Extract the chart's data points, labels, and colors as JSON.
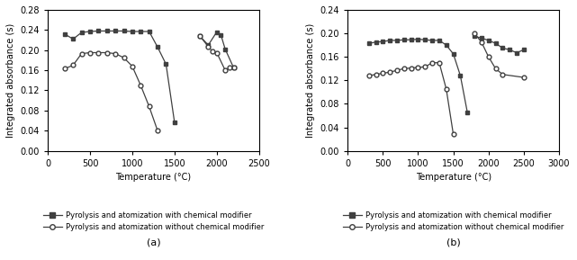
{
  "panel_a": {
    "with_modifier_seg1_x": [
      200,
      300,
      400,
      500,
      600,
      700,
      800,
      900,
      1000,
      1100,
      1200,
      1300,
      1400,
      1500
    ],
    "with_modifier_seg1_y": [
      0.232,
      0.222,
      0.235,
      0.237,
      0.238,
      0.238,
      0.238,
      0.238,
      0.237,
      0.237,
      0.237,
      0.206,
      0.172,
      0.057
    ],
    "with_modifier_seg2_x": [
      1800,
      1900,
      2000,
      2050,
      2100,
      2200
    ],
    "with_modifier_seg2_y": [
      0.228,
      0.21,
      0.236,
      0.23,
      0.202,
      0.165
    ],
    "without_modifier_seg1_x": [
      200,
      300,
      400,
      500,
      600,
      700,
      800,
      900,
      1000,
      1100,
      1200,
      1300
    ],
    "without_modifier_seg1_y": [
      0.163,
      0.17,
      0.193,
      0.195,
      0.195,
      0.195,
      0.193,
      0.185,
      0.168,
      0.13,
      0.088,
      0.04
    ],
    "without_modifier_seg2_x": [
      1800,
      1900,
      1950,
      2000,
      2100,
      2150,
      2200
    ],
    "without_modifier_seg2_y": [
      0.228,
      0.207,
      0.197,
      0.195,
      0.16,
      0.165,
      0.165
    ],
    "xlim": [
      0,
      2500
    ],
    "ylim": [
      0.0,
      0.28
    ],
    "xticks": [
      0,
      500,
      1000,
      1500,
      2000,
      2500
    ],
    "yticks": [
      0.0,
      0.04,
      0.08,
      0.12,
      0.16,
      0.2,
      0.24,
      0.28
    ],
    "xlabel": "Temperature (°C)",
    "ylabel": "Integrated absorbance (s)",
    "label": "(a)"
  },
  "panel_b": {
    "with_modifier_seg1_x": [
      300,
      400,
      500,
      600,
      700,
      800,
      900,
      1000,
      1100,
      1200,
      1300,
      1400,
      1500,
      1600,
      1700
    ],
    "with_modifier_seg1_y": [
      0.183,
      0.185,
      0.186,
      0.188,
      0.188,
      0.189,
      0.189,
      0.19,
      0.189,
      0.188,
      0.188,
      0.18,
      0.165,
      0.128,
      0.065
    ],
    "with_modifier_seg2_x": [
      1800,
      1900,
      2000,
      2100,
      2200,
      2300,
      2400,
      2500
    ],
    "with_modifier_seg2_y": [
      0.195,
      0.192,
      0.188,
      0.183,
      0.175,
      0.172,
      0.167,
      0.172
    ],
    "without_modifier_seg1_x": [
      300,
      400,
      500,
      600,
      700,
      800,
      900,
      1000,
      1100,
      1200,
      1300,
      1400,
      1500
    ],
    "without_modifier_seg1_y": [
      0.128,
      0.13,
      0.132,
      0.134,
      0.137,
      0.14,
      0.141,
      0.142,
      0.143,
      0.15,
      0.15,
      0.105,
      0.028
    ],
    "without_modifier_seg2_x": [
      1800,
      1900,
      2000,
      2100,
      2200,
      2500
    ],
    "without_modifier_seg2_y": [
      0.2,
      0.185,
      0.16,
      0.14,
      0.13,
      0.125
    ],
    "xlim": [
      0,
      3000
    ],
    "ylim": [
      0.0,
      0.24
    ],
    "xticks": [
      0,
      500,
      1000,
      1500,
      2000,
      2500,
      3000
    ],
    "yticks": [
      0.0,
      0.04,
      0.08,
      0.12,
      0.16,
      0.2,
      0.24
    ],
    "xlabel": "Temperature (°C)",
    "ylabel": "Integrated absorbance (s)",
    "label": "(b)"
  },
  "legend_with": "Pyrolysis and atomization with chemical modifier",
  "legend_without": "Pyrolysis and atomization without chemical modifier",
  "line_color": "#404040",
  "bg_color": "#ffffff"
}
